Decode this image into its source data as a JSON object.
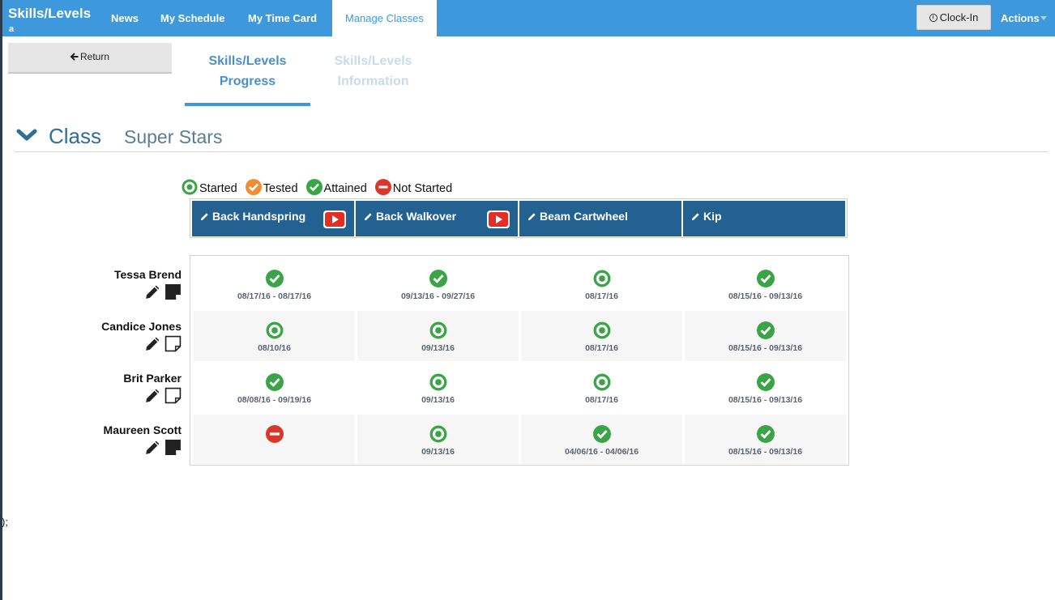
{
  "header": {
    "brand": "Skills/Levels",
    "brand_sub": "a",
    "nav": [
      "News",
      "My Schedule",
      "My Time Card",
      "Manage Classes"
    ],
    "clock_in": "Clock-In",
    "actions": "Actions"
  },
  "return_label": "Return",
  "tabs": {
    "progress": [
      "Skills/Levels",
      "Progress"
    ],
    "information": [
      "Skills/Levels",
      "Information"
    ]
  },
  "class": {
    "label": "Class",
    "name": "Super Stars"
  },
  "legend": {
    "started": "Started",
    "tested": "Tested",
    "attained": "Attained",
    "not_started": "Not Started"
  },
  "colors": {
    "started": "#3aa547",
    "tested": "#ef8e32",
    "attained": "#3aa547",
    "not_started": "#d9362c",
    "header_blue": "#236191",
    "nav_blue": "#3d98dc"
  },
  "skills": [
    {
      "name": "Back Handspring",
      "video": true
    },
    {
      "name": "Back Walkover",
      "video": true
    },
    {
      "name": "Beam Cartwheel",
      "video": false
    },
    {
      "name": "Kip",
      "video": false
    }
  ],
  "students": [
    {
      "name": "Tessa Brend",
      "note_filled": true,
      "cells": [
        {
          "status": "attained",
          "dates": "08/17/16 - 08/17/16"
        },
        {
          "status": "attained",
          "dates": "09/13/16 - 09/27/16"
        },
        {
          "status": "started",
          "dates": "08/17/16"
        },
        {
          "status": "attained",
          "dates": "08/15/16 - 09/13/16"
        }
      ]
    },
    {
      "name": "Candice Jones",
      "note_filled": false,
      "cells": [
        {
          "status": "started",
          "dates": "08/10/16"
        },
        {
          "status": "started",
          "dates": "09/13/16"
        },
        {
          "status": "started",
          "dates": "08/17/16"
        },
        {
          "status": "attained",
          "dates": "08/15/16 - 09/13/16"
        }
      ]
    },
    {
      "name": "Brit Parker",
      "note_filled": false,
      "cells": [
        {
          "status": "attained",
          "dates": "08/08/16 - 09/19/16"
        },
        {
          "status": "started",
          "dates": "09/13/16"
        },
        {
          "status": "started",
          "dates": "08/17/16"
        },
        {
          "status": "attained",
          "dates": "08/15/16 - 09/13/16"
        }
      ]
    },
    {
      "name": "Maureen Scott",
      "note_filled": true,
      "cells": [
        {
          "status": "not_started",
          "dates": ""
        },
        {
          "status": "started",
          "dates": "09/13/16"
        },
        {
          "status": "attained",
          "dates": "04/06/16 - 04/06/16"
        },
        {
          "status": "attained",
          "dates": "08/15/16 - 09/13/16"
        }
      ]
    }
  ],
  "stray_text": ");"
}
